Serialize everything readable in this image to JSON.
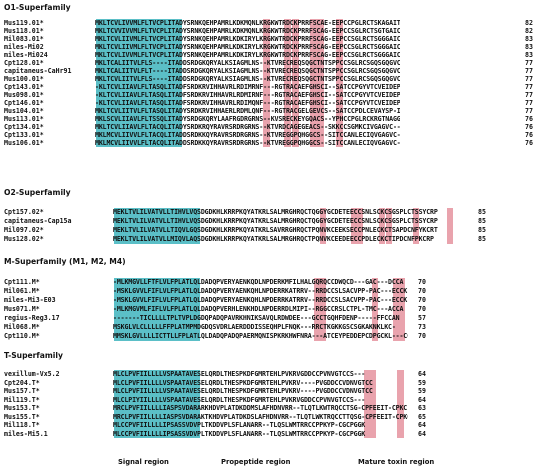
{
  "colors": {
    "signal_region": "#5bbfc7",
    "cysteine_highlight": "#e9a3ad"
  },
  "legend": {
    "signal": "Signal region",
    "propeptide": "Propeptide region",
    "mature": "Mature toxin region"
  },
  "blocks": [
    {
      "title": "O1-Superfamily",
      "rows": [
        {
          "name": "Mus119.01*",
          "seq": "MKLTCVLIVVMLFLTVCPLITADYSRNKQEHPAMRLKDKMQNLKRGKWTRDCKPRRFSCAE-EEPCCPGLRCTSKAGAITT-",
          "len": "82"
        },
        {
          "name": "Mus118.01*",
          "seq": "MKLTCVVIVVMLFLTVCPLITADYSRNKQEHPAMRLKDKMQNLKRGKWTRDCKPRRFSCAG-EEPCCSGLRCTSGTGAICVT-",
          "len": "82"
        },
        {
          "name": "Mil083.01*",
          "seq": "MKLTCVLIIVMLFLTVCPLITADYSRNKQEHPAMRLKDKIRYLKRGKWTRDCKPRRFSCAG-EEPCCSGLRCTSGGGAICVT",
          "len": "83"
        },
        {
          "name": "miles-Mi02",
          "seq": "MKLTCVLIIVMLFLTVCPLITADYSRNKQEHPAMRLKDKIRYLKRGKWTRDCKPRRFSCAG-EEPCCSGLRCTSGGGAICVT",
          "len": "83"
        },
        {
          "name": "miles-Mi024",
          "seq": "MKLTCVLIVVMLFLTVCPLITADYSRNKQEHPAMRLKDKIRYLKRGKWTRDCKPRRFSCAG-EEPCCSGLRCTSGGGAICVT",
          "len": "83"
        },
        {
          "name": "Cpt128.01*",
          "seq": "MKLTCALIITVLFLS----ITADDSRDGKQRYALKSIAGMLNS--KTVRECREQSQGCTNTSPPCCSGLRCSGQSGQGVCISN",
          "len": "77"
        },
        {
          "name": "capitaneus-CaHr91",
          "seq": "MKLTCALIITVLFLT----ITADDSRDGKQRYALKSIAGMLNS--KTVRECREQSQGCTNTSPPCCSGLRCSGQSGQGVCISN",
          "len": "77"
        },
        {
          "name": "Mus100.01*",
          "seq": "MKLTCVLIITVLFLS----ITADDSRDGKQRYALKSIAGMLNS--KTVRECREQSQGCTNTSPPCCSGLRCSGQSGQGVCISN",
          "len": "77"
        },
        {
          "name": "Cpt143.01*",
          "seq": "-KLTCVLIIAVLFLTASQLITADFSRDKRVIHHAVRLRDIMRNF---RGTRACAEFGHSCI--SATCCPGYVTCVEIDEP-VCLWD",
          "len": "77"
        },
        {
          "name": "Mus098.01*",
          "seq": "-KLTCVLIIAVLFLTASQLITADFSRDKRVIHHAVRLRDMIRNF---RGTRACAEFGHSCI--SATCCPGYVTCVEIDEP-VCLWE",
          "len": "77"
        },
        {
          "name": "Cpt146.01*",
          "seq": "-KLTCVLIIAVLFLTASQLITADFSRDKRVIHHAVRLRDIMQNF---RGTRACAEFGHSCI--SATCCPGYVTCVEIDEP-VCLWD",
          "len": "77"
        },
        {
          "name": "Mus104.01*",
          "seq": "MKLTCVLIITVLFLTASQLITADYSRDKRVIHHAERLRDMLQNF---RGTRACGELGEVCS--SATCCPDLCEVAYSP-ICLWE",
          "len": "77"
        },
        {
          "name": "Mus113.01*",
          "seq": "MKLSCVLIIAVLFLTSSQLITADYSRDGKQRYLAAFRGDRGRNS--KVSRECKEYGQACS--YPHCCPGLRCKRGTNAGGMC-",
          "len": "76"
        },
        {
          "name": "Cpt134.01*",
          "seq": "MKLTCVLIIAVLFLTACQLITADYSRDKRQYRAVRSRDRGRNS--KTVRDCAGEGEACS--SKKCCSGMKCIVGAGVC-----",
          "len": "76"
        },
        {
          "name": "Cpt133.01*",
          "seq": "MKLMCVLIIVVLFLTACQLITADDSRDKKQYRAVRSRDRGRNS--KTVREGGPQHGGCS--SITCCANLECIQVGAGVC----",
          "len": "76"
        },
        {
          "name": "Mus106.01*",
          "seq": "MKLMCVLIIVVLFLTACQLITADDSRDKKQYRAVRSRDRGRNS--KTVREGGPQHGGCS--SITCCANLECIQVGAGVC----",
          "len": "76"
        }
      ]
    },
    {
      "title": "O2-Superfamily",
      "rows": [
        {
          "name": "Cpt157.02*",
          "seq": "MEKLTVLILVATVLLTIHVLVQSDGDKHLKRRPKQYATKRLSALMRGHRQCTQGGYGCDETEECCSNLSCKCSGSPLCTSSYCRP",
          "len": "85"
        },
        {
          "name": "capitaneus-Cap15a",
          "seq": "MEKLTVLILVATVLLTIHVLVQSDGDKHLKRRPKQYATKRLSALMRGHRQCTQGGYGCDETEECCSNLSCKCSGSPLCTSSYCRP",
          "len": "85"
        },
        {
          "name": "Mil097.02*",
          "seq": "MEKLTVLILVATVLLTIQVLGQSDGDKHLKRRPKQYATKRLSAVRRGHRQCTPQNVKCEEKSECCPNLECKCTSAPDCNFYKCRT",
          "len": "85"
        },
        {
          "name": "Mus128.02*",
          "seq": "MEKLTVLILVATVLLMIQVLAQSDGDKHLKRRPKQYATKRLSALMRGHRQCTPQNVKCEEDEECCPDLECKCTIPDCNFPKCRP",
          "len": "85"
        }
      ]
    },
    {
      "title": "M-Superfamily (M1, M2, M4)",
      "rows": [
        {
          "name": "Cpt111.M*",
          "seq": "-MLKMGVLLFTFLVLFPLATLQLDADQPVERYAENKQDLNPDERKMFILHALGQRQCCDWQCD---GAC---DCCA",
          "len": "70"
        },
        {
          "name": "Mil061.M*",
          "seq": "-MSKLGVVLFIFLVLFPLATLQLDADQPVERYAENKQHLNPDERRKATRRV--RRDCCSLSACVPP-PAC---ECCK",
          "len": "70"
        },
        {
          "name": "miles-Mi3-E03",
          "seq": "-MSKLGVVLFIFLVLFPLATLQLDADQPVERYAENKQHLNPDERRKATRRV--RRDCCSLSACVPP-PAC---ECCK",
          "len": "70"
        },
        {
          "name": "Mus071.M*",
          "seq": "-MLKMGVMLFIFLVLFPLATLQLDADQPVERHLENKHDLNPDERRDLMIPI--RGGCCRSLCTPL-TMC---ACCA",
          "len": "70"
        },
        {
          "name": "regius-Reg3.17",
          "seq": "-------TICLLLLTPLTVPLDGDQPADQPAVRKHNIKSAVQLRDWDEE---GCCTGQHFDENP-----FFCCAN",
          "len": "57"
        },
        {
          "name": "Mil068.M*",
          "seq": "MSKGLVLCLLLLLFFPLATMPMDGDQSVDRLAERDDDISSEQHPLFNQK---RRCTKGKKGSCSGKAKNKLKC-",
          "len": "73"
        },
        {
          "name": "Cpt110.M*",
          "seq": "MMSKLGVLLLLICTTLLFPLATLQLDADQPADQPAERMQNISPKRKHWFNRA---ATCEYPEDDEPCDPGCKL---CC",
          "len": "70"
        }
      ]
    },
    {
      "title": "T-Superfamily",
      "rows": [
        {
          "name": "vexillum-Vx5.2",
          "seq": "MLCLPVFIILLLLVSPAATAVESELQRDLTHESPKDFGMRTEHLPVKRVGDDCCPVNVGTCCS---",
          "len": "64"
        },
        {
          "name": "Cpt204.T*",
          "seq": "MLCLPVFIILLLLVSPAATAVESELQRDLTHESPKDFGMRTEHLPVKRV----PVGDDCCVDNVGTCC",
          "len": "59"
        },
        {
          "name": "Mus157.T*",
          "seq": "MLCLPVFIILLLLVSPAATAVESELQRDLTHESPKDFGMRTEHLPVKRV----PVGDDCCVDNVGTCC",
          "len": "59"
        },
        {
          "name": "Mil119.T*",
          "seq": "MLCLPIYIILLLLVSPAATAVESELQRDLTHESPKDFGMRTEHLPVKRVGDDCCPVNVGTCCS---",
          "len": "64"
        },
        {
          "name": "Mus153.T*",
          "seq": "MRCLPVFIILLLLIASPSVDARARKHDVPLATDKDDMSLAFHDNVRR--TLQTLKWTRQCCTSG-CPFEEIT-CPKC",
          "len": "63"
        },
        {
          "name": "Mus155.T*",
          "seq": "MRCLPVFIILLLLIASPSVDARAKTKHDVPLATDKDSLAFHDNVRR--TLQTLWKTRQCCTTQSG-CPFEEIT-CPKC",
          "len": "65"
        },
        {
          "name": "Mil118.T*",
          "seq": "MLCCPVFIILLLLIPSASSVDVPLTKDDVPLSFLANARR--TLQSLWMTRRCCPPKYP-CGCPGGK",
          "len": "64"
        },
        {
          "name": "miles-Mi5.1",
          "seq": "MLCCPVFIILLLLIPSASSVDVPLTKDDVPLSFLANARR--TLQSLWMTRRCCPPKYP-CGCPGGK",
          "len": "64"
        }
      ]
    }
  ]
}
